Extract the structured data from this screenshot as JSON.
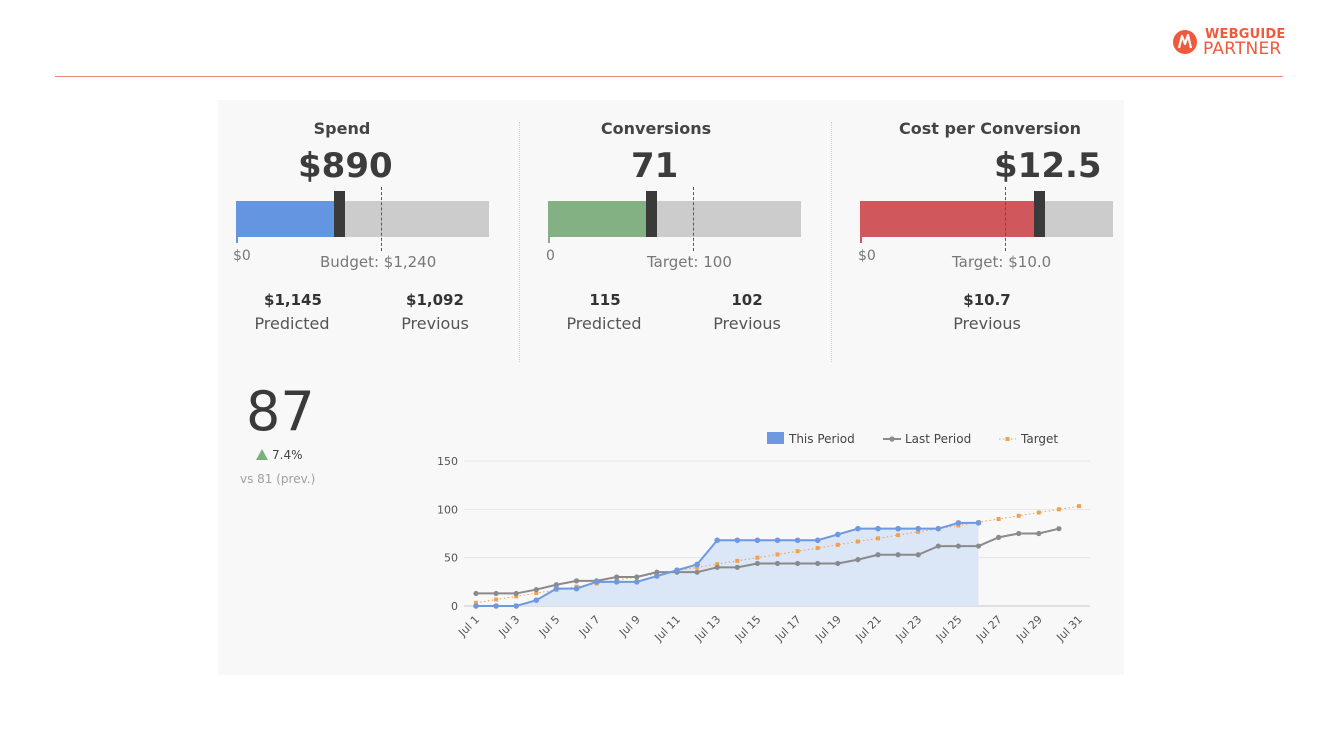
{
  "brand": {
    "line1": "WEBGUIDE",
    "line2": "PARTNER",
    "color": "#ef5a3c"
  },
  "cards": [
    {
      "title": "Spend",
      "value": "$890",
      "fill_color": "#6495e0",
      "fill_fraction": 0.3928,
      "target_fraction": 0.5714,
      "min_label": "$0",
      "target_label": "Budget: $1,240",
      "stats": [
        {
          "value": "$1,145",
          "label": "Predicted"
        },
        {
          "value": "$1,092",
          "label": "Previous"
        }
      ]
    },
    {
      "title": "Conversions",
      "value": "71",
      "fill_color": "#83b183",
      "fill_fraction": 0.3928,
      "target_fraction": 0.5714,
      "min_label": "0",
      "target_label": "Target: 100",
      "stats": [
        {
          "value": "115",
          "label": "Predicted"
        },
        {
          "value": "102",
          "label": "Previous"
        }
      ]
    },
    {
      "title": "Cost per Conversion",
      "value": "$12.5",
      "fill_color": "#d0575b",
      "fill_fraction": 0.6904,
      "target_fraction": 0.5714,
      "min_label": "$0",
      "target_label": "Target: $10.0",
      "stats": [
        {
          "value": "$10.7",
          "label": "Previous"
        }
      ]
    }
  ],
  "kpi": {
    "value": "87",
    "delta": "7.4%",
    "delta_color": "#7db07d",
    "comparison": "vs 81 (prev.)"
  },
  "chart_data": {
    "type": "line",
    "x_tick_labels": [
      "Jul 1",
      "Jul 3",
      "Jul 5",
      "Jul 7",
      "Jul 9",
      "Jul 11",
      "Jul 13",
      "Jul 15",
      "Jul 17",
      "Jul 19",
      "Jul 21",
      "Jul 23",
      "Jul 25",
      "Jul 27",
      "Jul 29",
      "Jul 31"
    ],
    "ylim": [
      0,
      150
    ],
    "y_ticks": [
      0,
      50,
      100,
      150
    ],
    "grid": true,
    "legend_position": "top-right",
    "series": [
      {
        "name": "This Period",
        "style": "area",
        "color": "#6e99e0",
        "fill": "#dbe6f7",
        "values": [
          0,
          0,
          0,
          6,
          18,
          18,
          25,
          25,
          25,
          31,
          37,
          43,
          68,
          68,
          68,
          68,
          68,
          68,
          74,
          80,
          80,
          80,
          80,
          80,
          86,
          86
        ]
      },
      {
        "name": "Last Period",
        "style": "line",
        "color": "#8a8a8a",
        "values": [
          13,
          13,
          13,
          17,
          22,
          26,
          26,
          30,
          30,
          35,
          35,
          35,
          40,
          40,
          44,
          44,
          44,
          44,
          44,
          48,
          53,
          53,
          53,
          62,
          62,
          62,
          71,
          75,
          75,
          80
        ]
      },
      {
        "name": "Target",
        "style": "dotted",
        "color": "#f0a050",
        "values": [
          3.3,
          6.7,
          10,
          13.3,
          16.7,
          20,
          23.3,
          26.7,
          30,
          33.3,
          36.7,
          40,
          43.3,
          46.7,
          50,
          53.3,
          56.7,
          60,
          63.3,
          66.7,
          70,
          73.3,
          76.7,
          80,
          83.3,
          86.7,
          90,
          93.3,
          96.7,
          100,
          103.3
        ]
      }
    ]
  }
}
